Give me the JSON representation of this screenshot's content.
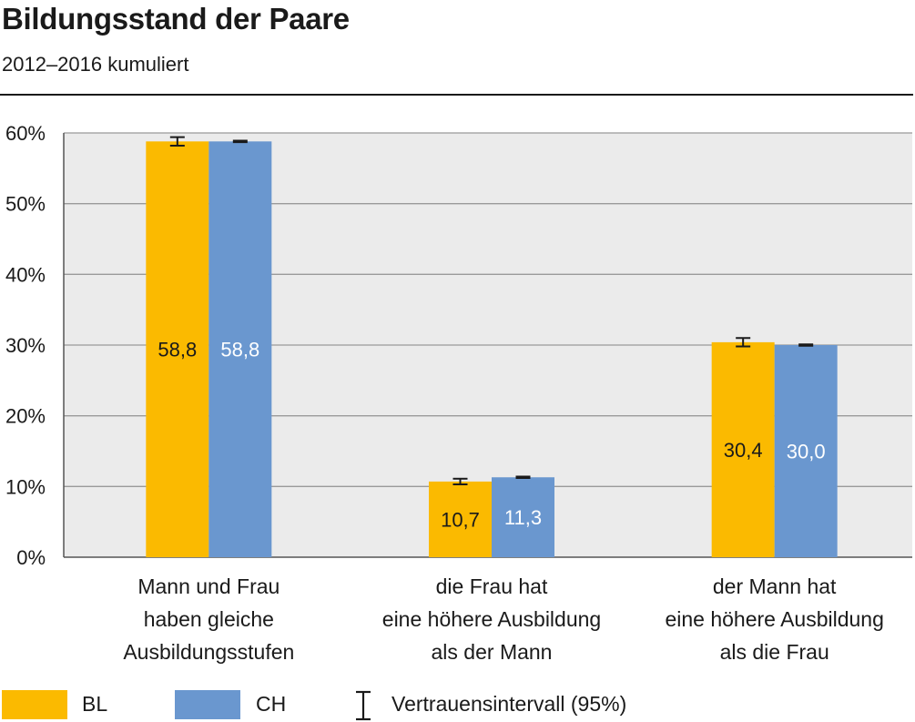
{
  "title": "Bildungsstand der Paare",
  "subtitle": "2012–2016 kumuliert",
  "colors": {
    "BL": "#FBBA00",
    "CH": "#6A97CF",
    "grid": "#9a9a9a",
    "plot_bg": "#EBEBEB"
  },
  "legend": {
    "bl_label": "BL",
    "ch_label": "CH",
    "ci_label": "Vertrauensintervall (95%)"
  },
  "chart_data": {
    "type": "bar",
    "title": "Bildungsstand der Paare",
    "subtitle": "2012–2016 kumuliert",
    "categories": [
      [
        "Mann und Frau",
        "haben gleiche",
        "Ausbildungsstufen"
      ],
      [
        "die Frau hat",
        "eine höhere Ausbildung",
        "als der Mann"
      ],
      [
        "der Mann hat",
        "eine höhere Ausbildung",
        "als die Frau"
      ]
    ],
    "series": [
      {
        "name": "BL",
        "values": [
          58.8,
          10.7,
          30.4
        ],
        "labels": [
          "58,8",
          "10,7",
          "30,4"
        ],
        "ci": [
          [
            58.2,
            59.4
          ],
          [
            10.3,
            11.1
          ],
          [
            29.8,
            31.0
          ]
        ]
      },
      {
        "name": "CH",
        "values": [
          58.8,
          11.3,
          30.0
        ],
        "labels": [
          "58,8",
          "11,3",
          "30,0"
        ],
        "ci": [
          [
            58.7,
            58.9
          ],
          [
            11.2,
            11.4
          ],
          [
            29.9,
            30.1
          ]
        ]
      }
    ],
    "ylim": [
      0,
      60
    ],
    "yticks": [
      0,
      10,
      20,
      30,
      40,
      50,
      60
    ],
    "ytick_labels": [
      "0%",
      "10%",
      "20%",
      "30%",
      "40%",
      "50%",
      "60%"
    ],
    "xlabel": "",
    "ylabel": "",
    "grid": true,
    "legend_position": "bottom"
  }
}
